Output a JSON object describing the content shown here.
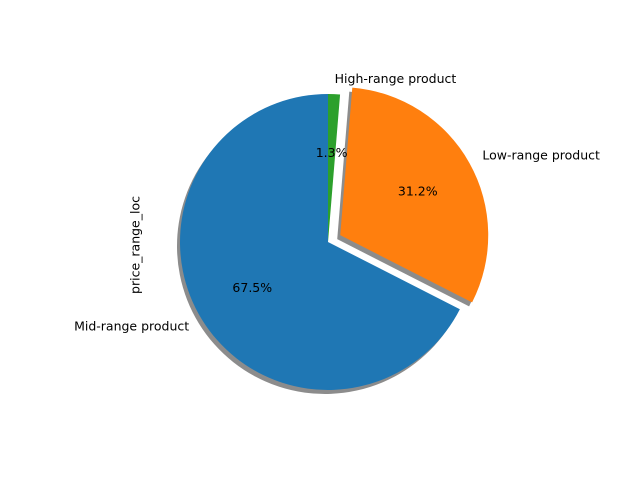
{
  "chart_data": {
    "type": "pie",
    "title": "",
    "ylabel": "price_range_loc",
    "labels": [
      "Mid-range product",
      "Low-range product",
      "High-range product"
    ],
    "values": [
      67.5,
      31.2,
      1.3
    ],
    "pct_labels": [
      "67.5%",
      "31.2%",
      "1.3%"
    ],
    "colors": [
      "#1f77b4",
      "#ff7f0e",
      "#2ca02c"
    ],
    "exploded": [
      false,
      true,
      false
    ],
    "shadow": true,
    "start_angle_deg": 90,
    "legend": "none"
  }
}
